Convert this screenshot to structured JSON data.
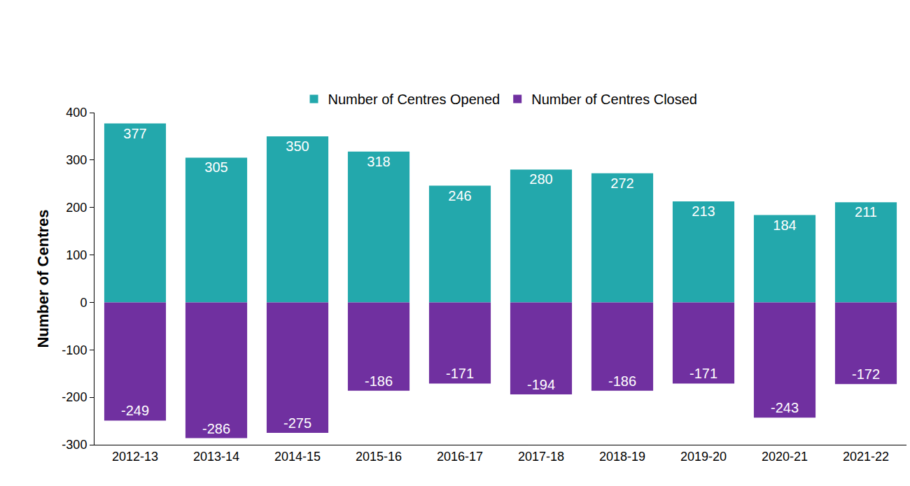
{
  "chart_data": {
    "type": "bar",
    "y_label": "Number of Centres",
    "categories": [
      "2012-13",
      "2013-14",
      "2014-15",
      "2015-16",
      "2016-17",
      "2017-18",
      "2018-19",
      "2019-20",
      "2020-21",
      "2021-22"
    ],
    "series": [
      {
        "name": "Number of Centres Opened",
        "color": "#23a8ac",
        "values": [
          377,
          305,
          350,
          318,
          246,
          280,
          272,
          213,
          184,
          211
        ]
      },
      {
        "name": "Number of Centres Closed",
        "color": "#7030a0",
        "values": [
          -249,
          -286,
          -275,
          -186,
          -171,
          -194,
          -186,
          -171,
          -243,
          -172
        ]
      }
    ],
    "ylim": [
      -300,
      400
    ],
    "yticks": [
      -300,
      -200,
      -100,
      0,
      100,
      200,
      300,
      400
    ],
    "stacked": true,
    "data_labels": true,
    "grid": false,
    "legend": "top"
  }
}
